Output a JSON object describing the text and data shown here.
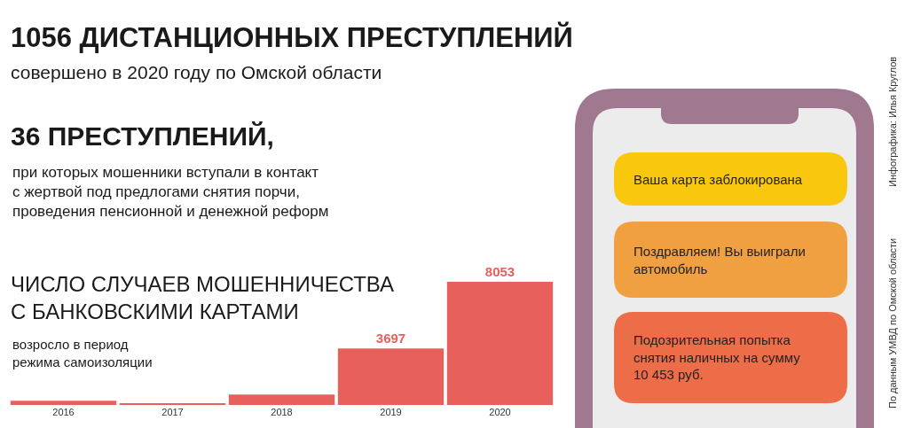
{
  "chart_data": {
    "type": "bar",
    "title": "1056 ДИСТАНЦИОННЫХ ПРЕСТУПЛЕНИЙ",
    "subtitle": "совершено в 2020 году по Омской области",
    "annotations": [
      "36 ПРЕСТУПЛЕНИЙ,",
      "при которых мошенники вступали в контакт\nс жертвой под предлогами снятия порчи,\nпроведения пенсионной и денежной реформ",
      "ЧИСЛО СЛУЧАЕВ МОШЕННИЧЕСТВА\nС БАНКОВСКИМИ КАРТАМИ",
      "возросло в период\nрежима самоизоляции",
      "Ваша карта заблокирована",
      "Поздравляем! Вы выиграли\nавтомобиль",
      "Подозрительная попытка\nснятия наличных на сумму\n10 453 руб.",
      "Инфографика: Илья Круглов",
      "По данным УМВД по Омской области"
    ],
    "categories": [
      "2016",
      "2017",
      "2018",
      "2019",
      "2020"
    ],
    "values": [
      280,
      120,
      680,
      3697,
      8053
    ],
    "value_labels": [
      null,
      null,
      null,
      "3697",
      "8053"
    ],
    "color": "#e8605c",
    "tick_labels": "x"
  }
}
